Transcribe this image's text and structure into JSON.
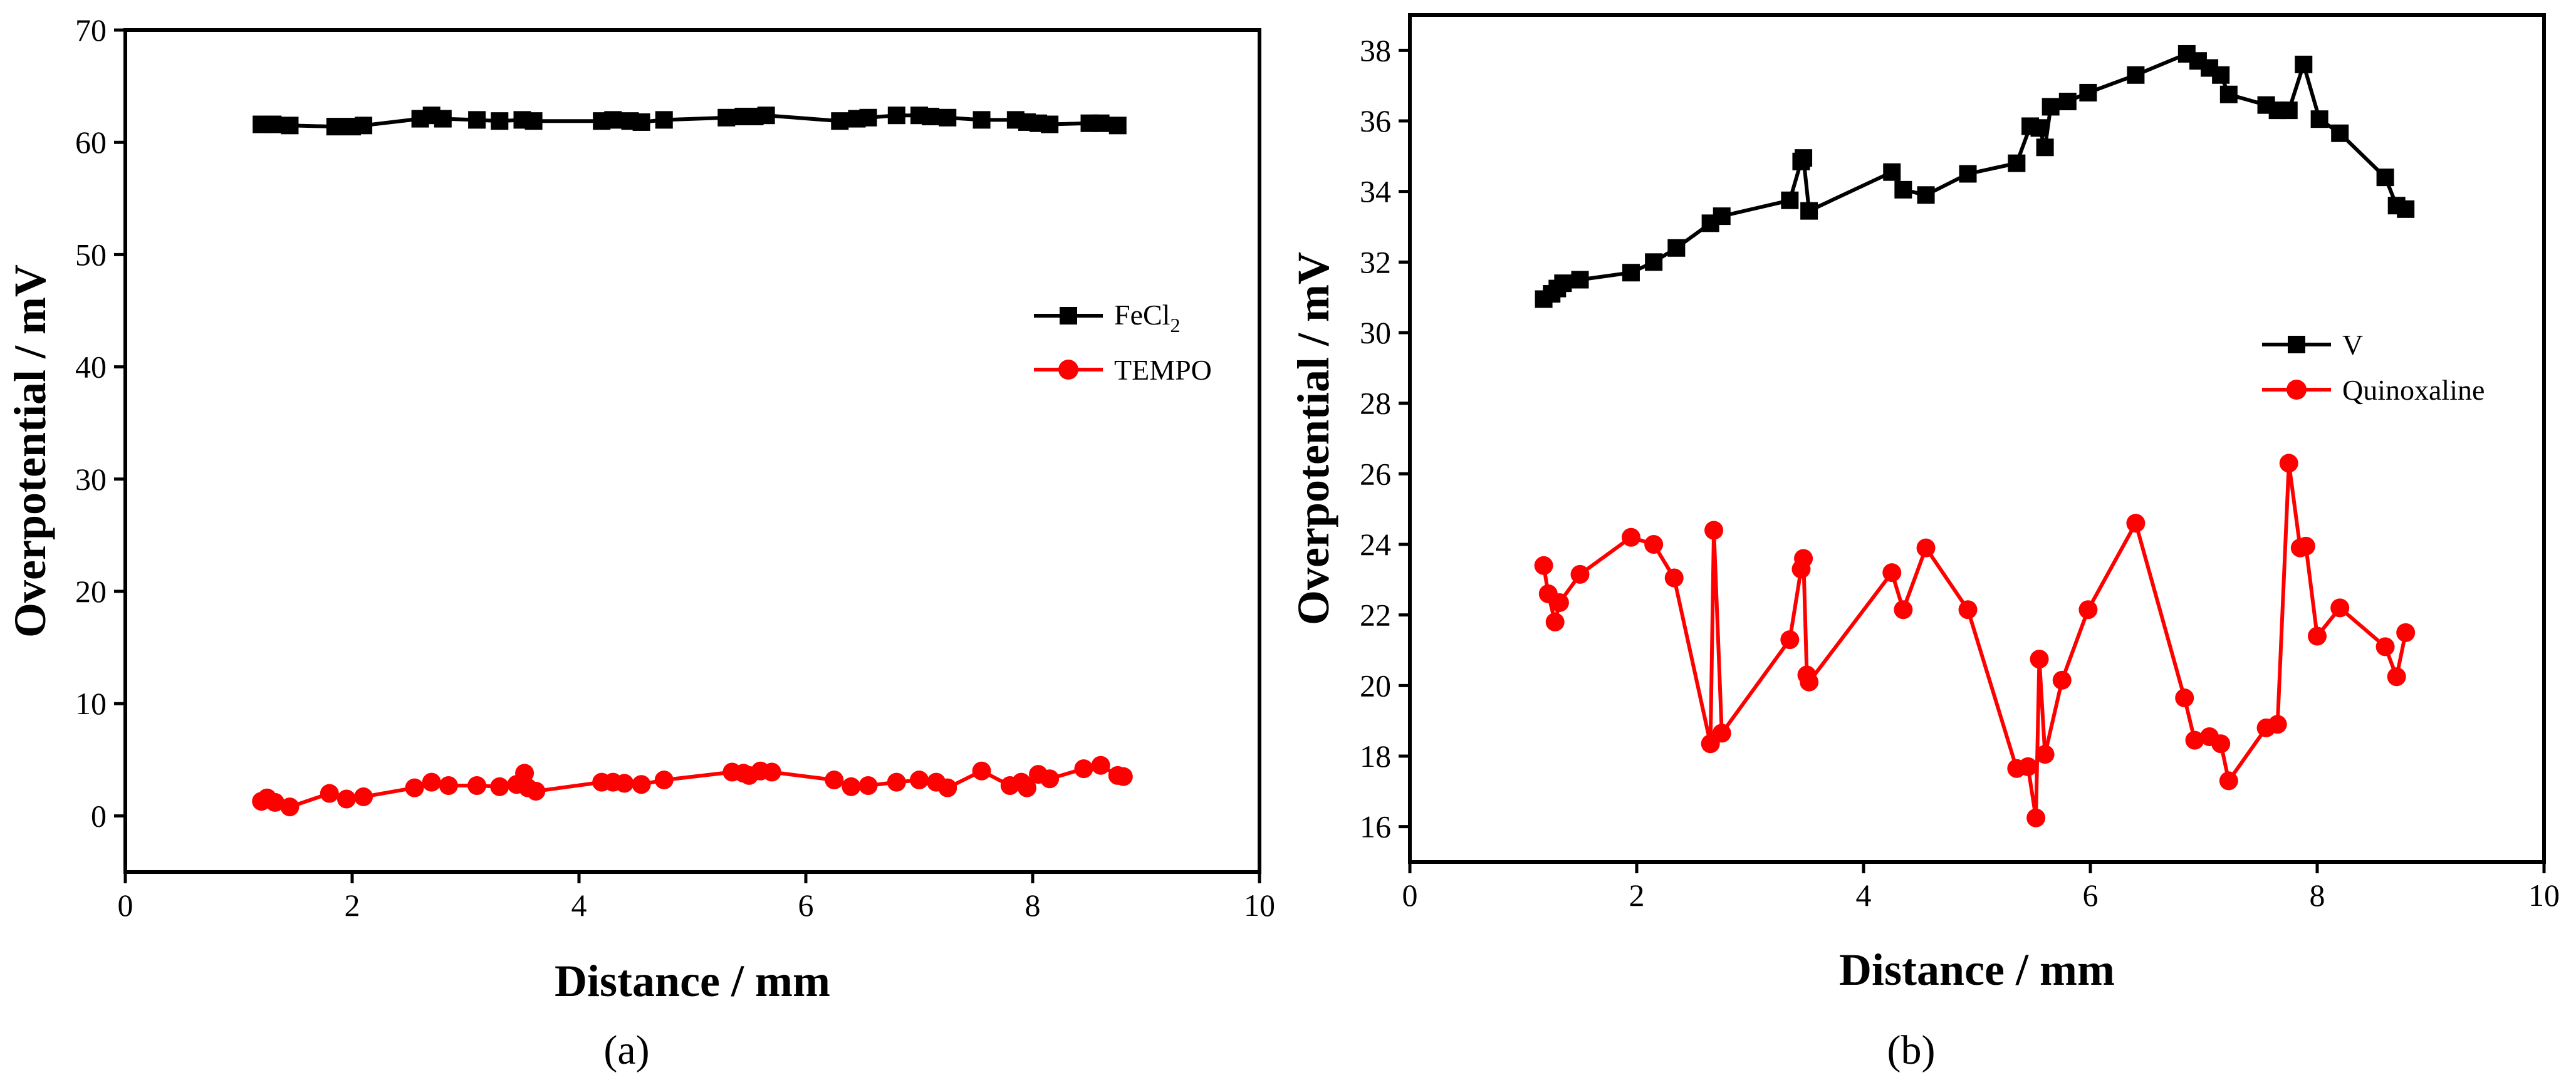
{
  "chart_data": [
    {
      "type": "line",
      "caption": "(a)",
      "xlabel": "Distance / mm",
      "ylabel": "Overpotential / mV",
      "xlim": [
        0,
        10
      ],
      "ylim": [
        -5,
        70
      ],
      "x_ticks": [
        "0",
        "2",
        "4",
        "6",
        "8",
        "10"
      ],
      "y_ticks": [
        "0",
        "10",
        "20",
        "30",
        "40",
        "50",
        "60",
        "70"
      ],
      "legend_position": "right-middle",
      "series": [
        {
          "name": "FeCl",
          "name_subscript": "2",
          "color": "#000000",
          "marker": "square",
          "x": [
            1.2,
            1.3,
            1.45,
            1.85,
            2.0,
            2.1,
            2.6,
            2.7,
            2.8,
            3.1,
            3.3,
            3.5,
            3.6,
            4.2,
            4.3,
            4.45,
            4.55,
            4.75,
            5.3,
            5.45,
            5.55,
            5.65,
            6.3,
            6.45,
            6.55,
            6.8,
            7.0,
            7.1,
            7.25,
            7.55,
            7.85,
            7.95,
            8.05,
            8.15,
            8.5,
            8.6,
            8.75
          ],
          "y": [
            61.6,
            61.6,
            61.5,
            61.4,
            61.4,
            61.5,
            62.1,
            62.4,
            62.1,
            62.0,
            61.9,
            62.0,
            61.9,
            61.9,
            62.0,
            61.9,
            61.8,
            62.0,
            62.2,
            62.3,
            62.3,
            62.4,
            61.9,
            62.1,
            62.2,
            62.4,
            62.4,
            62.3,
            62.2,
            62.0,
            62.0,
            61.8,
            61.7,
            61.6,
            61.7,
            61.7,
            61.5
          ]
        },
        {
          "name": "TEMPO",
          "color": "#ff0000",
          "marker": "circle",
          "x": [
            1.2,
            1.25,
            1.32,
            1.45,
            1.8,
            1.95,
            2.1,
            2.55,
            2.7,
            2.85,
            3.1,
            3.3,
            3.45,
            3.52,
            3.55,
            3.62,
            4.2,
            4.3,
            4.4,
            4.55,
            4.75,
            5.35,
            5.45,
            5.5,
            5.6,
            5.7,
            6.25,
            6.4,
            6.55,
            6.8,
            7.0,
            7.15,
            7.25,
            7.55,
            7.8,
            7.9,
            7.95,
            8.05,
            8.15,
            8.45,
            8.6,
            8.75,
            8.8
          ],
          "y": [
            1.3,
            1.6,
            1.2,
            0.8,
            2.0,
            1.5,
            1.7,
            2.5,
            3.0,
            2.7,
            2.7,
            2.6,
            2.8,
            3.8,
            2.5,
            2.2,
            3.0,
            3.0,
            2.9,
            2.8,
            3.2,
            3.9,
            3.8,
            3.6,
            4.0,
            3.9,
            3.2,
            2.6,
            2.7,
            3.0,
            3.2,
            3.0,
            2.5,
            4.0,
            2.7,
            3.0,
            2.5,
            3.7,
            3.3,
            4.2,
            4.5,
            3.6,
            3.5
          ]
        }
      ]
    },
    {
      "type": "line",
      "caption": "(b)",
      "xlabel": "Distance / mm",
      "ylabel": "Overpotential / mV",
      "xlim": [
        0,
        10
      ],
      "ylim": [
        15,
        39
      ],
      "x_ticks": [
        "0",
        "2",
        "4",
        "6",
        "8",
        "10"
      ],
      "y_ticks": [
        "16",
        "18",
        "20",
        "22",
        "24",
        "26",
        "28",
        "30",
        "32",
        "34",
        "36",
        "38"
      ],
      "legend_position": "right-middle",
      "series": [
        {
          "name": "V",
          "color": "#000000",
          "marker": "square",
          "x": [
            1.18,
            1.25,
            1.3,
            1.35,
            1.5,
            1.95,
            2.15,
            2.35,
            2.65,
            2.75,
            3.35,
            3.45,
            3.47,
            3.52,
            4.25,
            4.35,
            4.55,
            4.92,
            5.35,
            5.47,
            5.55,
            5.6,
            5.65,
            5.8,
            5.98,
            6.4,
            6.85,
            6.95,
            7.05,
            7.15,
            7.22,
            7.55,
            7.65,
            7.75,
            7.88,
            8.02,
            8.2,
            8.6,
            8.7,
            8.78
          ],
          "y": [
            30.95,
            31.1,
            31.25,
            31.4,
            31.5,
            31.7,
            32.0,
            32.4,
            33.1,
            33.3,
            33.75,
            34.85,
            34.95,
            33.45,
            34.55,
            34.05,
            33.9,
            34.5,
            34.8,
            35.85,
            35.8,
            35.25,
            36.4,
            36.55,
            36.8,
            37.3,
            37.9,
            37.7,
            37.5,
            37.3,
            36.75,
            36.45,
            36.3,
            36.3,
            37.6,
            36.05,
            35.65,
            34.4,
            33.6,
            33.5
          ]
        },
        {
          "name": "Quinoxaline",
          "color": "#ff0000",
          "marker": "circle",
          "x": [
            1.18,
            1.22,
            1.28,
            1.32,
            1.5,
            1.95,
            2.15,
            2.33,
            2.65,
            2.68,
            2.75,
            3.35,
            3.45,
            3.47,
            3.5,
            3.52,
            4.25,
            4.35,
            4.55,
            4.92,
            5.35,
            5.45,
            5.52,
            5.55,
            5.6,
            5.75,
            5.98,
            6.4,
            6.83,
            6.92,
            7.05,
            7.15,
            7.22,
            7.55,
            7.65,
            7.75,
            7.85,
            7.9,
            8.0,
            8.2,
            8.6,
            8.7,
            8.78
          ],
          "y": [
            23.4,
            22.6,
            21.8,
            22.35,
            23.15,
            24.2,
            24.0,
            23.05,
            18.35,
            24.4,
            18.65,
            21.3,
            23.3,
            23.6,
            20.3,
            20.1,
            23.2,
            22.15,
            23.9,
            22.15,
            17.65,
            17.7,
            16.25,
            20.75,
            18.05,
            20.15,
            22.15,
            24.6,
            19.65,
            18.45,
            18.55,
            18.35,
            17.3,
            18.8,
            18.9,
            26.3,
            23.9,
            23.95,
            21.4,
            22.2,
            21.1,
            20.25,
            21.5
          ]
        }
      ]
    }
  ]
}
